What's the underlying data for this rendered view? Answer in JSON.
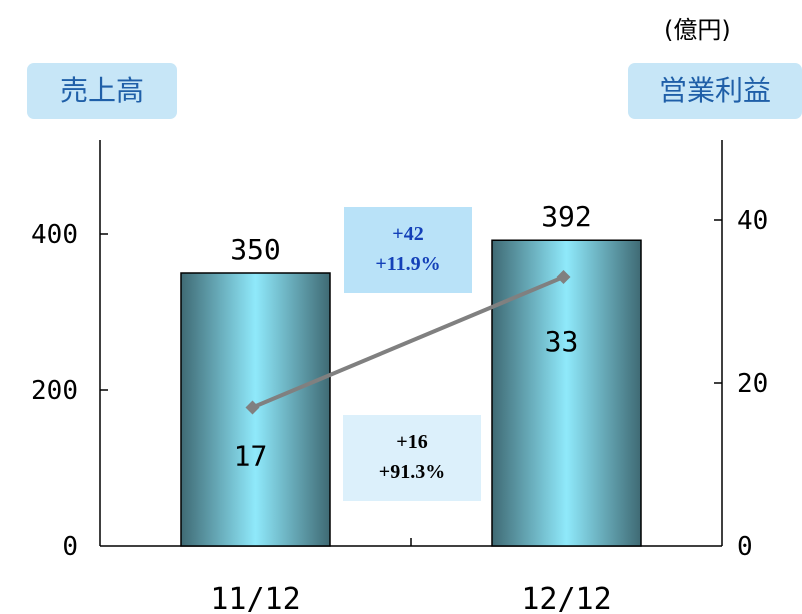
{
  "unit_label": "(億円)",
  "left_axis_tag": "売上高",
  "right_axis_tag": "営業利益",
  "colors": {
    "tag_bg": "#c7e6f7",
    "tag_text": "#1f5fa8",
    "bar_edge": "#3f6a74",
    "bar_center": "#8fe9fb",
    "line": "#808080",
    "sales_box_bg": "#b9e2f8",
    "sales_box_text": "#1340b8",
    "profit_box_bg": "#dcf0fb",
    "profit_box_text": "#000000"
  },
  "annotations": {
    "sales_change": {
      "line1": "+42",
      "line2": "+11.9%"
    },
    "profit_change": {
      "line1": "+16",
      "line2": "+91.3%"
    }
  },
  "chart_data": {
    "type": "bar",
    "categories": [
      "11/12",
      "12/12"
    ],
    "left_axis": {
      "min": 0,
      "max": 500,
      "ticks": [
        0,
        200,
        400
      ]
    },
    "right_axis": {
      "min": 0,
      "max": 50,
      "ticks": [
        0,
        20,
        40
      ]
    },
    "series": [
      {
        "name": "売上高",
        "type": "bar",
        "axis": "left",
        "values": [
          350,
          392
        ],
        "labels": [
          "350",
          "392"
        ]
      },
      {
        "name": "営業利益",
        "type": "line",
        "axis": "right",
        "values": [
          17,
          33
        ],
        "labels": [
          "17",
          "33"
        ]
      }
    ],
    "grid": false
  }
}
